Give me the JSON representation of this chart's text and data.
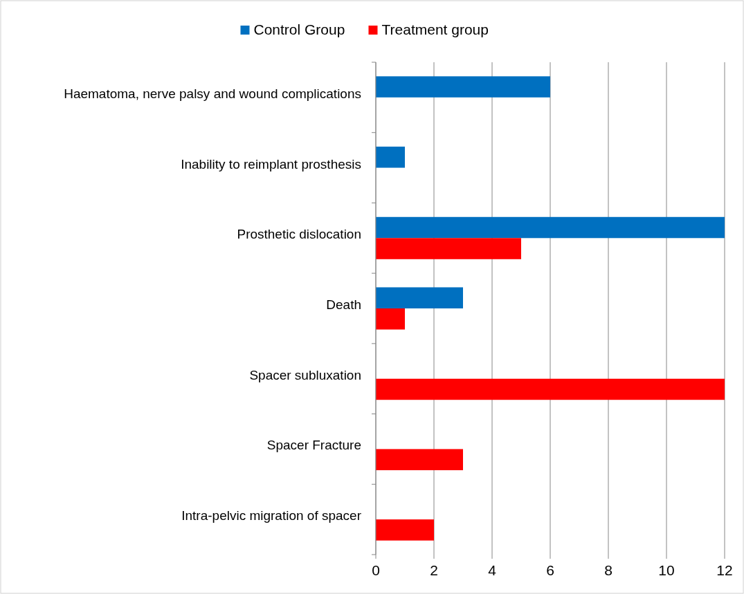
{
  "chart_data": {
    "type": "bar",
    "orientation": "horizontal",
    "categories": [
      "Haematoma, nerve palsy and wound complications",
      "Inability to reimplant prosthesis",
      "Prosthetic dislocation",
      "Death",
      "Spacer subluxation",
      "Spacer Fracture",
      "Intra-pelvic migration of spacer"
    ],
    "series": [
      {
        "name": "Control Group",
        "color": "#0070c0",
        "values": [
          6,
          1,
          12,
          3,
          0,
          0,
          0
        ]
      },
      {
        "name": "Treatment group",
        "color": "#ff0000",
        "values": [
          0,
          0,
          5,
          1,
          12,
          3,
          2
        ]
      }
    ],
    "xlim": [
      0,
      12
    ],
    "xticks": [
      0,
      2,
      4,
      6,
      8,
      10,
      12
    ],
    "grid": "x",
    "legend": "top"
  }
}
